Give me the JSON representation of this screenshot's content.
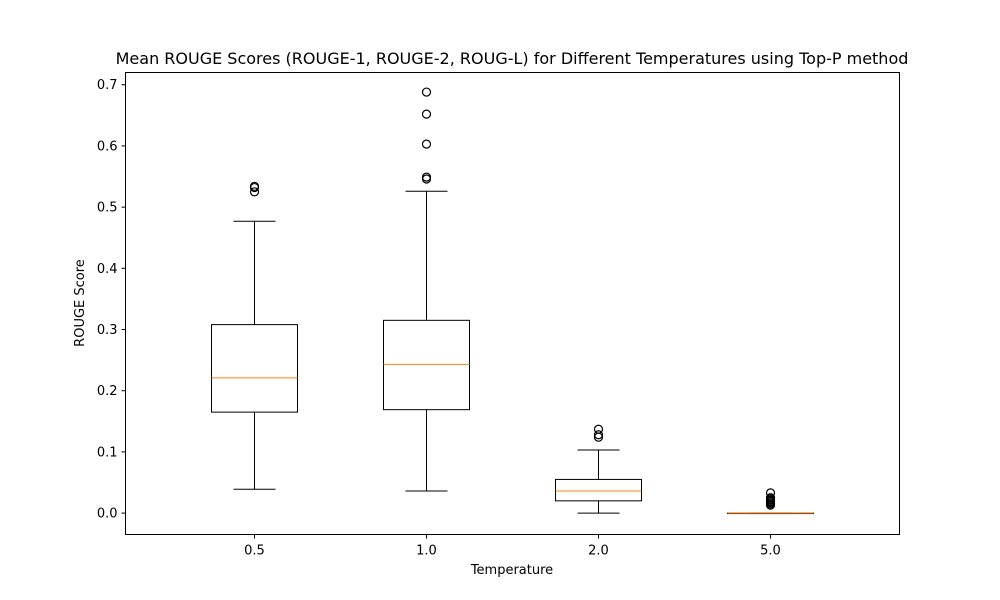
{
  "chart_data": {
    "type": "box",
    "title": "Mean ROUGE Scores (ROUGE-1, ROUGE-2, ROUG-L) for Different Temperatures using Top-P method",
    "xlabel": "Temperature",
    "ylabel": "ROUGE Score",
    "ylim": [
      -0.035,
      0.72
    ],
    "yticks": [
      0.0,
      0.1,
      0.2,
      0.3,
      0.4,
      0.5,
      0.6,
      0.7
    ],
    "ytick_labels": [
      "0.0",
      "0.1",
      "0.2",
      "0.3",
      "0.4",
      "0.5",
      "0.6",
      "0.7"
    ],
    "grid": false,
    "categories": [
      "0.5",
      "1.0",
      "2.0",
      "5.0"
    ],
    "boxes": [
      {
        "category": "0.5",
        "whisker_low": 0.039,
        "q1": 0.165,
        "median": 0.221,
        "q3": 0.308,
        "whisker_high": 0.477,
        "outliers": [
          0.525,
          0.532,
          0.534
        ]
      },
      {
        "category": "1.0",
        "whisker_low": 0.036,
        "q1": 0.169,
        "median": 0.243,
        "q3": 0.315,
        "whisker_high": 0.526,
        "outliers": [
          0.546,
          0.549,
          0.603,
          0.652,
          0.688
        ]
      },
      {
        "category": "2.0",
        "whisker_low": 0.0,
        "q1": 0.02,
        "median": 0.036,
        "q3": 0.055,
        "whisker_high": 0.103,
        "outliers": [
          0.124,
          0.128,
          0.137
        ]
      },
      {
        "category": "5.0",
        "whisker_low": 0.0,
        "q1": 0.0,
        "median": 0.0,
        "q3": 0.0,
        "whisker_high": 0.0,
        "outliers": [
          0.013,
          0.015,
          0.017,
          0.019,
          0.021,
          0.023,
          0.025,
          0.033
        ]
      }
    ],
    "colors": {
      "box": "#000000",
      "median": "#ff7f0e",
      "outlier": "#000000"
    }
  }
}
